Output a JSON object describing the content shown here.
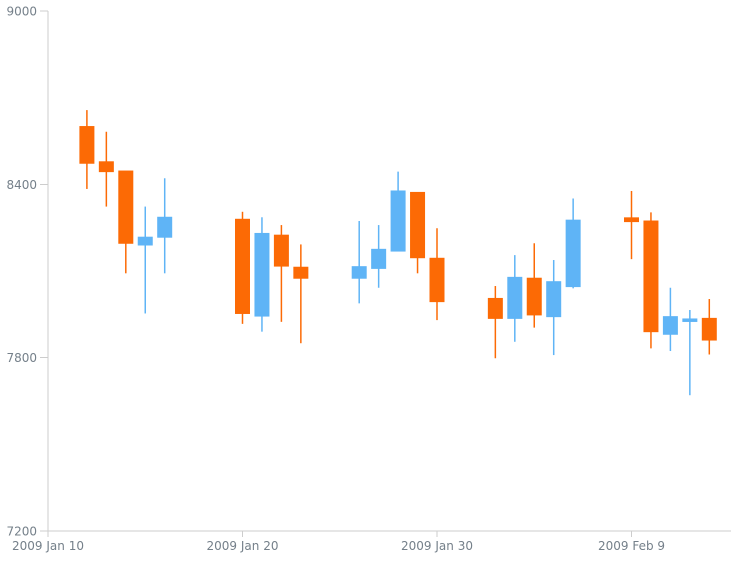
{
  "chart_data": {
    "type": "candlestick",
    "title": "",
    "legend": null,
    "grid": "off",
    "colors": {
      "rising": "#5fb4f6",
      "falling": "#fc6a05",
      "axis_line": "#cdcdcd",
      "tick": "#cdcdcd",
      "label_text": "#75808a",
      "background": "#ffffff"
    },
    "y_axis": {
      "min": 7200,
      "max": 9000,
      "ticks": [
        9000,
        8400,
        7800,
        7200
      ]
    },
    "x_axis": {
      "start_date": "2009-01-10",
      "days_visible": 35.2,
      "ticks": [
        {
          "label": "2009 Jan 10",
          "day": 0
        },
        {
          "label": "2009 Jan 20",
          "day": 10
        },
        {
          "label": "2009 Jan 30",
          "day": 20
        },
        {
          "label": "2009 Feb 9",
          "day": 30
        }
      ]
    },
    "series": [
      {
        "date": "2009-01-12",
        "day": 2,
        "open": 8600,
        "high": 8657,
        "low": 8384,
        "close": 8473,
        "trend": "falling"
      },
      {
        "date": "2009-01-13",
        "day": 3,
        "open": 8478,
        "high": 8582,
        "low": 8323,
        "close": 8444,
        "trend": "falling"
      },
      {
        "date": "2009-01-14",
        "day": 4,
        "open": 8446,
        "high": 8446,
        "low": 8092,
        "close": 8196,
        "trend": "falling"
      },
      {
        "date": "2009-01-15",
        "day": 5,
        "open": 8190,
        "high": 8323,
        "low": 7953,
        "close": 8217,
        "trend": "rising"
      },
      {
        "date": "2009-01-16",
        "day": 6,
        "open": 8217,
        "high": 8421,
        "low": 8092,
        "close": 8286,
        "trend": "rising"
      },
      {
        "date": "2009-01-20",
        "day": 10,
        "open": 8279,
        "high": 8305,
        "low": 7917,
        "close": 7953,
        "trend": "falling"
      },
      {
        "date": "2009-01-21",
        "day": 11,
        "open": 7944,
        "high": 8286,
        "low": 7890,
        "close": 8230,
        "trend": "rising"
      },
      {
        "date": "2009-01-22",
        "day": 12,
        "open": 8224,
        "high": 8259,
        "low": 7924,
        "close": 8117,
        "trend": "falling"
      },
      {
        "date": "2009-01-23",
        "day": 13,
        "open": 8113,
        "high": 8192,
        "low": 7850,
        "close": 8075,
        "trend": "falling"
      },
      {
        "date": "2009-01-26",
        "day": 16,
        "open": 8075,
        "high": 8273,
        "low": 7988,
        "close": 8115,
        "trend": "rising"
      },
      {
        "date": "2009-01-27",
        "day": 17,
        "open": 8109,
        "high": 8259,
        "low": 8042,
        "close": 8175,
        "trend": "rising"
      },
      {
        "date": "2009-01-28",
        "day": 18,
        "open": 8169,
        "high": 8444,
        "low": 8169,
        "close": 8377,
        "trend": "rising"
      },
      {
        "date": "2009-01-29",
        "day": 19,
        "open": 8372,
        "high": 8372,
        "low": 8092,
        "close": 8146,
        "trend": "falling"
      },
      {
        "date": "2009-01-30",
        "day": 20,
        "open": 8144,
        "high": 8248,
        "low": 7930,
        "close": 7994,
        "trend": "falling"
      },
      {
        "date": "2009-02-02",
        "day": 23,
        "open": 8005,
        "high": 8048,
        "low": 7798,
        "close": 7936,
        "trend": "falling"
      },
      {
        "date": "2009-02-03",
        "day": 24,
        "open": 7936,
        "high": 8155,
        "low": 7855,
        "close": 8078,
        "trend": "rising"
      },
      {
        "date": "2009-02-04",
        "day": 25,
        "open": 8075,
        "high": 8196,
        "low": 7904,
        "close": 7948,
        "trend": "falling"
      },
      {
        "date": "2009-02-05",
        "day": 26,
        "open": 7942,
        "high": 8138,
        "low": 7809,
        "close": 8063,
        "trend": "rising"
      },
      {
        "date": "2009-02-06",
        "day": 27,
        "open": 8046,
        "high": 8351,
        "low": 8040,
        "close": 8276,
        "trend": "rising"
      },
      {
        "date": "2009-02-09",
        "day": 30,
        "open": 8284,
        "high": 8377,
        "low": 8141,
        "close": 8271,
        "trend": "falling"
      },
      {
        "date": "2009-02-10",
        "day": 31,
        "open": 8273,
        "high": 8303,
        "low": 7832,
        "close": 7890,
        "trend": "falling"
      },
      {
        "date": "2009-02-11",
        "day": 32,
        "open": 7881,
        "high": 8042,
        "low": 7823,
        "close": 7942,
        "trend": "rising"
      },
      {
        "date": "2009-02-12",
        "day": 33,
        "open": 7930,
        "high": 7965,
        "low": 7670,
        "close": 7934,
        "trend": "rising"
      },
      {
        "date": "2009-02-13",
        "day": 34,
        "open": 7936,
        "high": 8003,
        "low": 7811,
        "close": 7861,
        "trend": "falling"
      }
    ]
  }
}
